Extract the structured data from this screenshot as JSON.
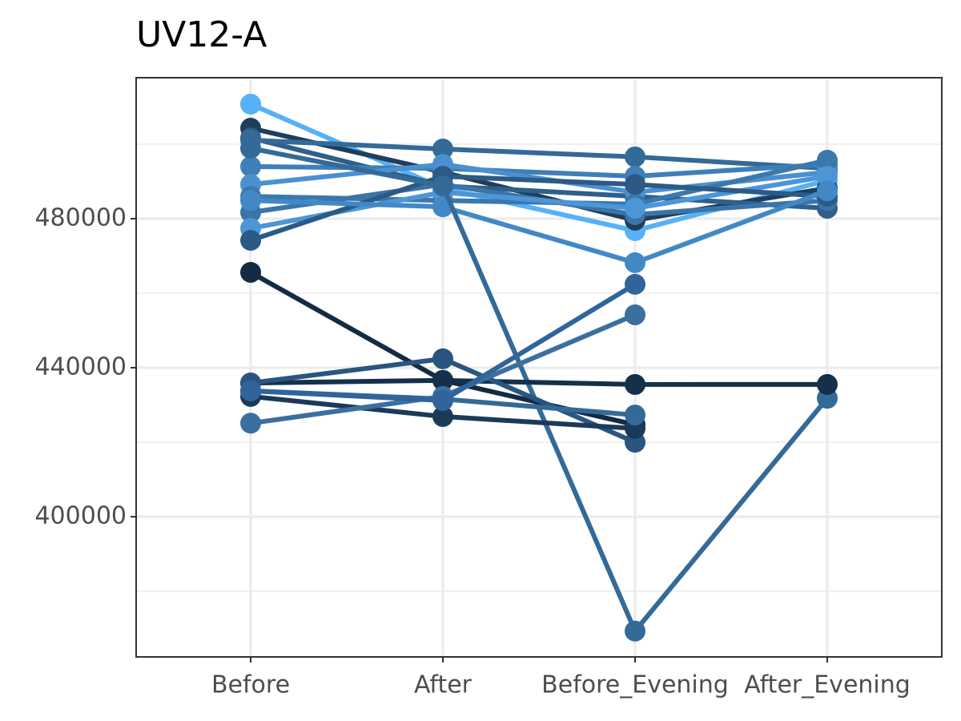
{
  "chart_data": {
    "type": "line",
    "title": "UV12-A",
    "categories": [
      "Before",
      "After",
      "Before_Evening",
      "After_Evening"
    ],
    "ylim": [
      362370,
      517850
    ],
    "yticks": [
      400000,
      440000,
      480000
    ],
    "yminor": [
      380000,
      420000,
      460000,
      500000
    ],
    "grid": true,
    "series": [
      {
        "color": "#56B1F7",
        "values": [
          510750,
          488200,
          476800,
          490300
        ]
      },
      {
        "color": "#1f3d5c",
        "values": [
          504300,
          492500,
          479600,
          488200
        ]
      },
      {
        "color": "#2f5f8a",
        "values": [
          501700,
          488800,
          486000,
          482800
        ]
      },
      {
        "color": "#336a98",
        "values": [
          501100,
          498700,
          496600,
          493500
        ]
      },
      {
        "color": "#3f7fb8",
        "values": [
          494000,
          493500,
          491400,
          494600
        ]
      },
      {
        "color": "#4a90d0",
        "values": [
          489200,
          494600,
          487100,
          492500
        ]
      },
      {
        "color": "#3a78ae",
        "values": [
          486000,
          484900,
          483900,
          495700
        ]
      },
      {
        "color": "#3b74a8",
        "values": [
          481700,
          489200,
          481100,
          484900
        ]
      },
      {
        "color": "#4c96d8",
        "values": [
          477400,
          487100,
          482800,
          491400
        ]
      },
      {
        "color": "#2c5a85",
        "values": [
          474200,
          491400,
          489200,
          486000
        ]
      },
      {
        "color": "#4189c6",
        "values": [
          484900,
          483200,
          468200,
          487500
        ]
      },
      {
        "color": "#336a98",
        "values": [
          498900,
          488800,
          369300,
          431800
        ]
      },
      {
        "color": "#132b43",
        "values": [
          465600,
          436600,
          424700,
          null
        ]
      },
      {
        "color": "#15304a",
        "values": [
          435900,
          436600,
          435500,
          435500
        ]
      },
      {
        "color": "#2a5580",
        "values": [
          435900,
          442400,
          420000,
          null
        ]
      },
      {
        "color": "#1c3a58",
        "values": [
          432300,
          426900,
          423700,
          null
        ]
      },
      {
        "color": "#336a98",
        "values": [
          433800,
          431600,
          427300,
          null
        ]
      },
      {
        "color": "#3a6fa0",
        "values": [
          425100,
          432300,
          454200,
          null
        ]
      },
      {
        "color": "#30649a",
        "values": [
          433800,
          431200,
          462400,
          null
        ]
      }
    ]
  }
}
